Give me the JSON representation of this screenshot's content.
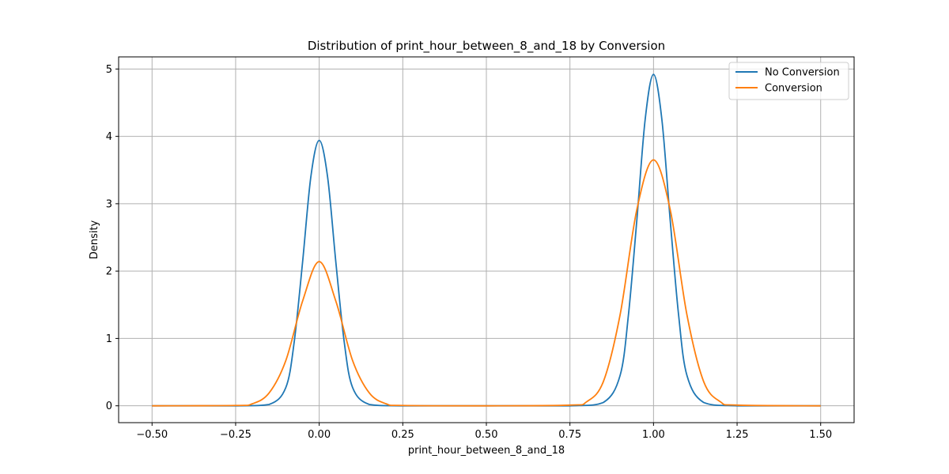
{
  "chart_data": {
    "type": "line",
    "title": "Distribution of print_hour_between_8_and_18 by Conversion",
    "xlabel": "print_hour_between_8_and_18",
    "ylabel": "Density",
    "xlim": [
      -0.6,
      1.6
    ],
    "ylim": [
      -0.25,
      5.18
    ],
    "xticks": [
      -0.5,
      -0.25,
      0.0,
      0.25,
      0.5,
      0.75,
      1.0,
      1.25,
      1.5
    ],
    "xtick_labels": [
      "−0.50",
      "−0.25",
      "0.00",
      "0.25",
      "0.50",
      "0.75",
      "1.00",
      "1.25",
      "1.50"
    ],
    "yticks": [
      0,
      1,
      2,
      3,
      4,
      5
    ],
    "ytick_labels": [
      "0",
      "1",
      "2",
      "3",
      "4",
      "5"
    ],
    "grid": true,
    "legend_position": "top-right",
    "series": [
      {
        "name": "No Conversion",
        "color": "#1f77b4",
        "x": [
          -0.5,
          -0.25,
          -0.15,
          -0.1,
          -0.075,
          -0.05,
          -0.025,
          0.0,
          0.025,
          0.05,
          0.075,
          0.1,
          0.15,
          0.25,
          0.5,
          0.75,
          0.85,
          0.9,
          0.925,
          0.95,
          0.975,
          1.0,
          1.025,
          1.05,
          1.075,
          1.1,
          1.15,
          1.25,
          1.5
        ],
        "values": [
          0,
          0,
          0.02,
          0.27,
          0.94,
          2.12,
          3.4,
          3.94,
          3.4,
          2.12,
          0.94,
          0.27,
          0.02,
          0,
          0,
          0,
          0.05,
          0.45,
          1.35,
          2.75,
          4.25,
          4.92,
          4.25,
          2.75,
          1.35,
          0.45,
          0.05,
          0,
          0
        ]
      },
      {
        "name": "Conversion",
        "color": "#ff7f0e",
        "x": [
          -0.5,
          -0.25,
          -0.2,
          -0.15,
          -0.1,
          -0.05,
          0.0,
          0.05,
          0.1,
          0.15,
          0.2,
          0.25,
          0.5,
          0.75,
          0.8,
          0.85,
          0.9,
          0.95,
          1.0,
          1.05,
          1.1,
          1.15,
          1.2,
          1.25,
          1.5
        ],
        "values": [
          0,
          0.005,
          0.03,
          0.19,
          0.67,
          1.55,
          2.14,
          1.55,
          0.67,
          0.19,
          0.03,
          0.005,
          0,
          0.01,
          0.06,
          0.36,
          1.35,
          2.91,
          3.65,
          2.91,
          1.35,
          0.36,
          0.06,
          0.01,
          0
        ]
      }
    ]
  }
}
